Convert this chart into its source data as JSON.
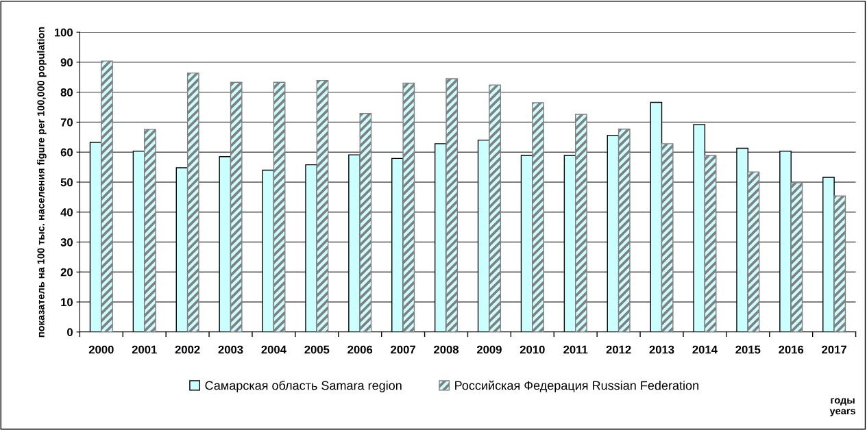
{
  "chart_data": {
    "type": "bar",
    "ylabel": "показатель на 100 тыс. населения figure per 100,000 population",
    "xlabel": "годы\nyears",
    "categories": [
      "2000",
      "2001",
      "2002",
      "2003",
      "2004",
      "2005",
      "2006",
      "2007",
      "2008",
      "2009",
      "2010",
      "2011",
      "2012",
      "2013",
      "2014",
      "2015",
      "2016",
      "2017"
    ],
    "series": [
      {
        "name": "Самарская область Samara region",
        "color": "#ccffff",
        "values": [
          63.3,
          60.3,
          54.8,
          58.5,
          54,
          55.8,
          59.1,
          57.9,
          62.8,
          64,
          58.9,
          58.9,
          65.6,
          76.6,
          69.2,
          61.3,
          60.3,
          51.6
        ]
      },
      {
        "name": "Российская Федерация Russian Federation",
        "color": "#808080",
        "values": [
          90.4,
          67.6,
          86.4,
          83.3,
          83.3,
          83.9,
          72.9,
          83,
          84.5,
          82.4,
          76.5,
          72.6,
          67.7,
          62.8,
          58.9,
          53.4,
          49.8,
          45.4
        ]
      }
    ],
    "ylim": [
      0,
      100
    ],
    "yticks": [
      0,
      10,
      20,
      30,
      40,
      50,
      60,
      70,
      80,
      90,
      100
    ],
    "grid": "y",
    "legend": "bottom"
  }
}
